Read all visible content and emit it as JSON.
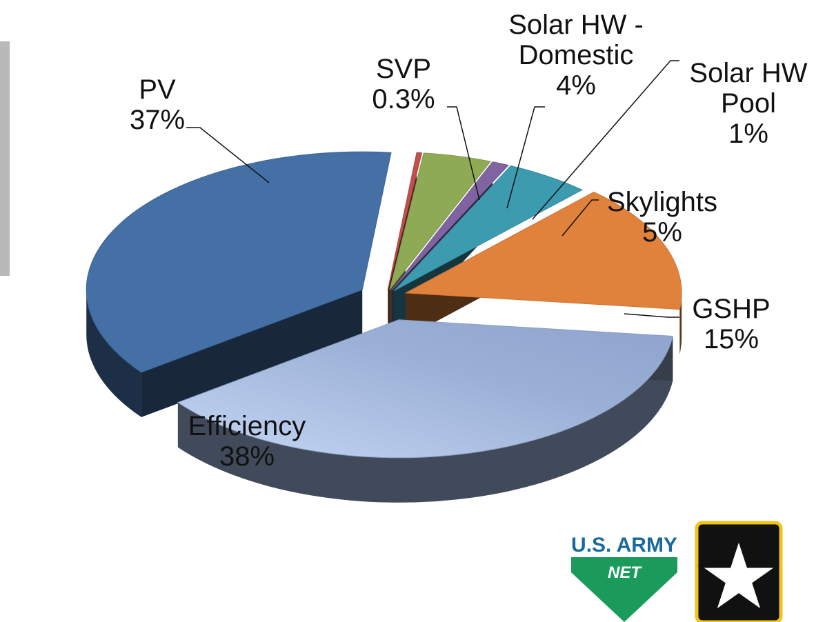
{
  "chart_data": {
    "type": "pie",
    "categories": [
      "SVP",
      "Solar HW - Domestic",
      "Solar HW Pool",
      "Skylights",
      "GSHP",
      "Efficiency",
      "PV"
    ],
    "values": [
      0.3,
      4,
      1,
      5,
      15,
      38,
      37
    ],
    "value_labels": [
      "0.3%",
      "4%",
      "1%",
      "5%",
      "15%",
      "38%",
      "37%"
    ],
    "colors": [
      "#c0504d",
      "#8faa55",
      "#8064a2",
      "#3d9bb0",
      "#e0823c",
      "#9bb0d6",
      "#4470a6"
    ]
  },
  "logos": {
    "army_net": "U.S. ARMY",
    "net": "NET"
  }
}
